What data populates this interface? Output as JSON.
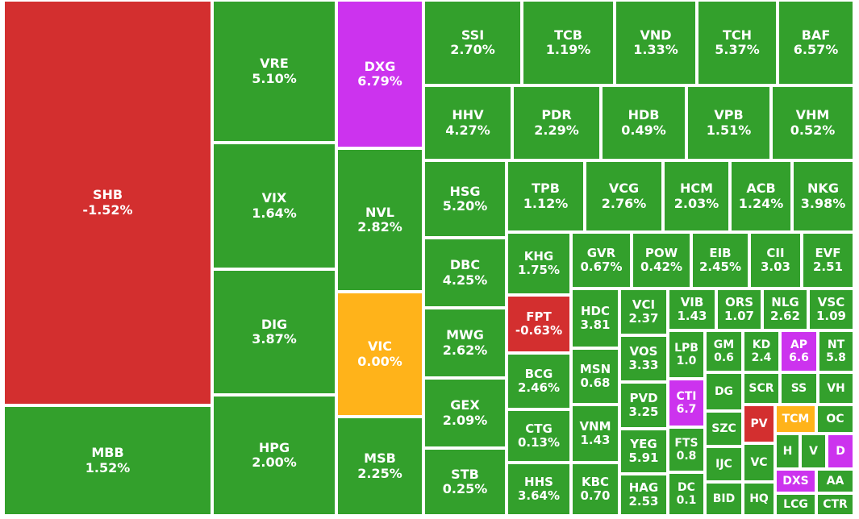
{
  "colors": {
    "up": "#33a02c",
    "down": "#d32f2f",
    "ref": "#ffb31a",
    "ceiling": "#cc33ee"
  },
  "chart_data": {
    "type": "treemap",
    "tiles": [
      {
        "ticker": "SHB",
        "change": "-1.52%",
        "status": "down"
      },
      {
        "ticker": "MBB",
        "change": "1.52%",
        "status": "up"
      },
      {
        "ticker": "VRE",
        "change": "5.10%",
        "status": "up"
      },
      {
        "ticker": "VIX",
        "change": "1.64%",
        "status": "up"
      },
      {
        "ticker": "DIG",
        "change": "3.87%",
        "status": "up"
      },
      {
        "ticker": "HPG",
        "change": "2.00%",
        "status": "up"
      },
      {
        "ticker": "DXG",
        "change": "6.79%",
        "status": "ceiling"
      },
      {
        "ticker": "NVL",
        "change": "2.82%",
        "status": "up"
      },
      {
        "ticker": "VIC",
        "change": "0.00%",
        "status": "ref"
      },
      {
        "ticker": "MSB",
        "change": "2.25%",
        "status": "up"
      },
      {
        "ticker": "SSI",
        "change": "2.70%",
        "status": "up"
      },
      {
        "ticker": "TCB",
        "change": "1.19%",
        "status": "up"
      },
      {
        "ticker": "VND",
        "change": "1.33%",
        "status": "up"
      },
      {
        "ticker": "TCH",
        "change": "5.37%",
        "status": "up"
      },
      {
        "ticker": "BAF",
        "change": "6.57%",
        "status": "up"
      },
      {
        "ticker": "HHV",
        "change": "4.27%",
        "status": "up"
      },
      {
        "ticker": "PDR",
        "change": "2.29%",
        "status": "up"
      },
      {
        "ticker": "HDB",
        "change": "0.49%",
        "status": "up"
      },
      {
        "ticker": "VPB",
        "change": "1.51%",
        "status": "up"
      },
      {
        "ticker": "VHM",
        "change": "0.52%",
        "status": "up"
      },
      {
        "ticker": "HSG",
        "change": "5.20%",
        "status": "up"
      },
      {
        "ticker": "TPB",
        "change": "1.12%",
        "status": "up"
      },
      {
        "ticker": "VCG",
        "change": "2.76%",
        "status": "up"
      },
      {
        "ticker": "HCM",
        "change": "2.03%",
        "status": "up"
      },
      {
        "ticker": "ACB",
        "change": "1.24%",
        "status": "up"
      },
      {
        "ticker": "NKG",
        "change": "3.98%",
        "status": "up"
      },
      {
        "ticker": "DBC",
        "change": "4.25%",
        "status": "up"
      },
      {
        "ticker": "KHG",
        "change": "1.75%",
        "status": "up"
      },
      {
        "ticker": "GVR",
        "change": "0.67%",
        "status": "up"
      },
      {
        "ticker": "POW",
        "change": "0.42%",
        "status": "up"
      },
      {
        "ticker": "EIB",
        "change": "2.45%",
        "status": "up"
      },
      {
        "ticker": "CII",
        "change": "3.03",
        "status": "up"
      },
      {
        "ticker": "EVF",
        "change": "2.51",
        "status": "up"
      },
      {
        "ticker": "MWG",
        "change": "2.62%",
        "status": "up"
      },
      {
        "ticker": "FPT",
        "change": "-0.63%",
        "status": "down"
      },
      {
        "ticker": "HDC",
        "change": "3.81",
        "status": "up"
      },
      {
        "ticker": "VCI",
        "change": "2.37",
        "status": "up"
      },
      {
        "ticker": "VIB",
        "change": "1.43",
        "status": "up"
      },
      {
        "ticker": "ORS",
        "change": "1.07",
        "status": "up"
      },
      {
        "ticker": "NLG",
        "change": "2.62",
        "status": "up"
      },
      {
        "ticker": "VSC",
        "change": "1.09",
        "status": "up"
      },
      {
        "ticker": "LPB",
        "change": "1.0",
        "status": "up"
      },
      {
        "ticker": "GM",
        "change": "0.6",
        "status": "up"
      },
      {
        "ticker": "KD",
        "change": "2.4",
        "status": "up"
      },
      {
        "ticker": "AP",
        "change": "6.6",
        "status": "ceiling"
      },
      {
        "ticker": "NT",
        "change": "5.8",
        "status": "up"
      },
      {
        "ticker": "GEX",
        "change": "2.09%",
        "status": "up"
      },
      {
        "ticker": "BCG",
        "change": "2.46%",
        "status": "up"
      },
      {
        "ticker": "MSN",
        "change": "0.68",
        "status": "up"
      },
      {
        "ticker": "VOS",
        "change": "3.33",
        "status": "up"
      },
      {
        "ticker": "CTI",
        "change": "6.7",
        "status": "ceiling"
      },
      {
        "ticker": "DG",
        "change": "",
        "status": "up"
      },
      {
        "ticker": "SCR",
        "change": "",
        "status": "up"
      },
      {
        "ticker": "SS",
        "change": "",
        "status": "up"
      },
      {
        "ticker": "VH",
        "change": "",
        "status": "up"
      },
      {
        "ticker": "PVD",
        "change": "3.25",
        "status": "up"
      },
      {
        "ticker": "SZC",
        "change": "",
        "status": "up"
      },
      {
        "ticker": "PV",
        "change": "",
        "status": "down"
      },
      {
        "ticker": "TCM",
        "change": "",
        "status": "ref"
      },
      {
        "ticker": "OC",
        "change": "",
        "status": "up"
      },
      {
        "ticker": "STB",
        "change": "0.25%",
        "status": "up"
      },
      {
        "ticker": "CTG",
        "change": "0.13%",
        "status": "up"
      },
      {
        "ticker": "VNM",
        "change": "1.43",
        "status": "up"
      },
      {
        "ticker": "YEG",
        "change": "5.91",
        "status": "up"
      },
      {
        "ticker": "FTS",
        "change": "0.8",
        "status": "up"
      },
      {
        "ticker": "H",
        "change": "",
        "status": "up"
      },
      {
        "ticker": "V",
        "change": "",
        "status": "up"
      },
      {
        "ticker": "D",
        "change": "",
        "status": "ceiling"
      },
      {
        "ticker": "IJC",
        "change": "",
        "status": "up"
      },
      {
        "ticker": "VC",
        "change": "",
        "status": "up"
      },
      {
        "ticker": "DXS",
        "change": "",
        "status": "ceiling"
      },
      {
        "ticker": "AA",
        "change": "",
        "status": "up"
      },
      {
        "ticker": "HHS",
        "change": "3.64%",
        "status": "up"
      },
      {
        "ticker": "KBC",
        "change": "0.70",
        "status": "up"
      },
      {
        "ticker": "HAG",
        "change": "2.53",
        "status": "up"
      },
      {
        "ticker": "DC",
        "change": "0.1",
        "status": "up"
      },
      {
        "ticker": "BID",
        "change": "",
        "status": "up"
      },
      {
        "ticker": "HQ",
        "change": "",
        "status": "up"
      },
      {
        "ticker": "LCG",
        "change": "",
        "status": "up"
      },
      {
        "ticker": "CTR",
        "change": "",
        "status": "up"
      }
    ]
  }
}
